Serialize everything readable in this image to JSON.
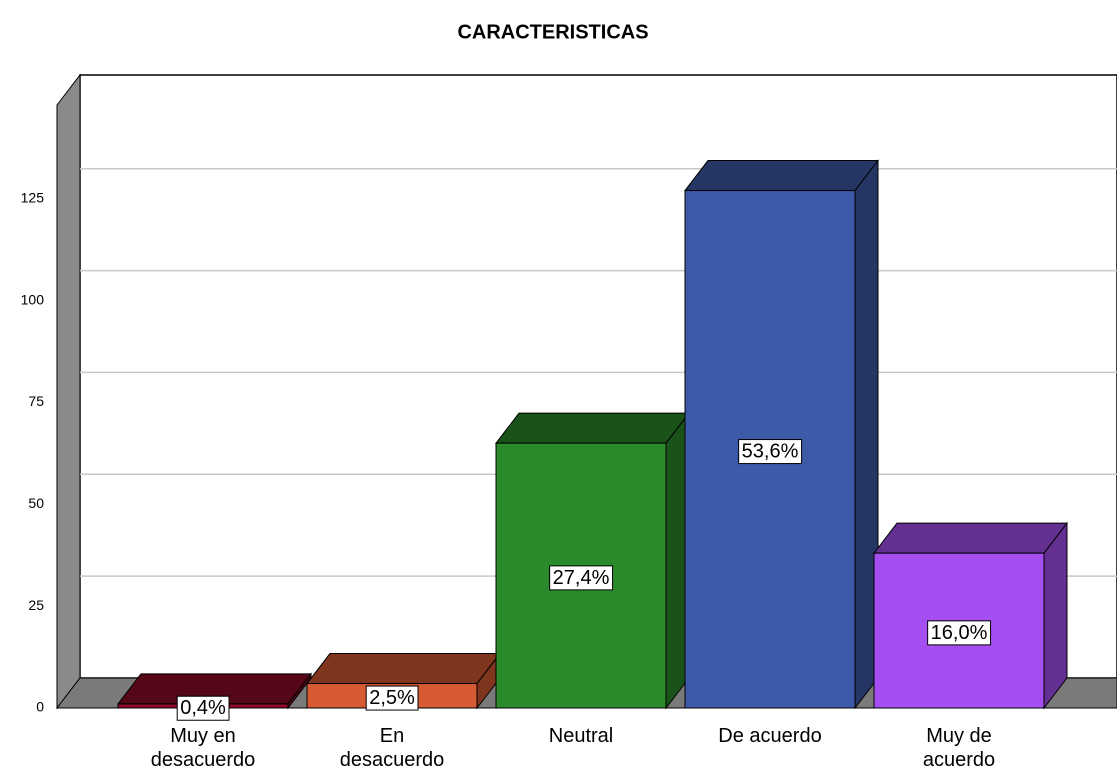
{
  "chart_data": {
    "type": "bar3d",
    "title": "CARACTERISTICAS",
    "categories": [
      "Muy en desacuerdo",
      "En desacuerdo",
      "Neutral",
      "De acuerdo",
      "Muy de acuerdo"
    ],
    "values": [
      1,
      6,
      65,
      127,
      38
    ],
    "value_labels": [
      "0,4%",
      "2,5%",
      "27,4%",
      "53,6%",
      "16,0%"
    ],
    "colors": [
      "#8e0a26",
      "#d65a32",
      "#2b8a2b",
      "#3d5aa8",
      "#a54ef2"
    ],
    "ylim": [
      0,
      148
    ],
    "yticks": [
      0,
      25,
      50,
      75,
      100,
      125
    ],
    "grid": true
  }
}
